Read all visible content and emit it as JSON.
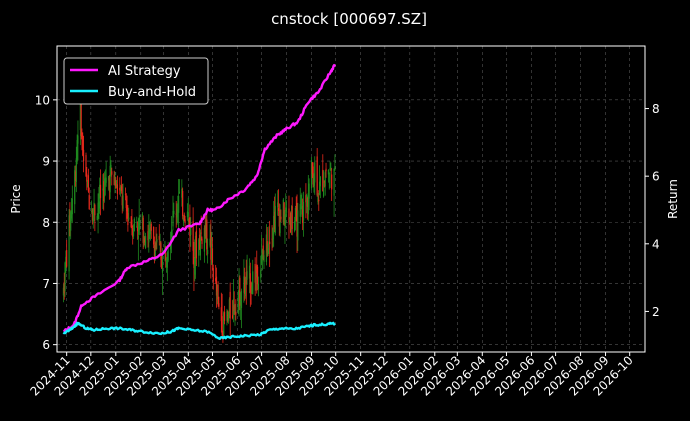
{
  "chart_data": {
    "type": "candlestick+line",
    "title": "cnstock [000697.SZ]",
    "ylabel_left": "Price",
    "ylabel_right": "Return",
    "ylim_left": [
      5.88,
      10.88
    ],
    "ylim_right": [
      0.8,
      9.85
    ],
    "yticks_left": [
      6,
      7,
      8,
      9,
      10
    ],
    "yticks_right": [
      2,
      4,
      6,
      8
    ],
    "xlim": [
      "2024-10-20",
      "2026-10-20"
    ],
    "x_tick_labels": [
      "2024-11",
      "2024-12",
      "2025-01",
      "2025-02",
      "2025-03",
      "2025-04",
      "2025-05",
      "2025-06",
      "2025-07",
      "2025-08",
      "2025-09",
      "2025-10",
      "2025-11",
      "2025-12",
      "2026-01",
      "2026-02",
      "2026-03",
      "2026-04",
      "2026-05",
      "2026-06",
      "2026-07",
      "2026-08",
      "2026-09",
      "2026-10"
    ],
    "grid": true,
    "legend_position": "top-left",
    "colors": {
      "up": "#1f8a1f",
      "down": "#e8291c",
      "ai_strategy": "#ff19ff",
      "buy_and_hold": "#19f0ff",
      "background": "#000000",
      "grid": "#555555"
    },
    "candles": {
      "date_range": [
        "2024-10-28",
        "2025-09-30"
      ],
      "close_keypoints": [
        [
          "2024-10-28",
          6.9
        ],
        [
          "2024-11-01",
          7.5
        ],
        [
          "2024-11-08",
          8.4
        ],
        [
          "2024-11-12",
          8.9
        ],
        [
          "2024-11-15",
          9.6
        ],
        [
          "2024-11-18",
          10.0
        ],
        [
          "2024-11-20",
          9.3
        ],
        [
          "2024-11-25",
          8.6
        ],
        [
          "2024-12-05",
          8.2
        ],
        [
          "2024-12-15",
          8.5
        ],
        [
          "2024-12-25",
          8.8
        ],
        [
          "2025-01-08",
          8.4
        ],
        [
          "2025-01-20",
          8.0
        ],
        [
          "2025-02-05",
          7.9
        ],
        [
          "2025-02-20",
          7.6
        ],
        [
          "2025-03-01",
          7.4
        ],
        [
          "2025-03-10",
          7.9
        ],
        [
          "2025-03-20",
          8.4
        ],
        [
          "2025-04-01",
          8.1
        ],
        [
          "2025-04-08",
          7.5
        ],
        [
          "2025-04-20",
          7.9
        ],
        [
          "2025-04-28",
          7.6
        ],
        [
          "2025-05-08",
          6.6
        ],
        [
          "2025-05-15",
          6.3
        ],
        [
          "2025-05-25",
          6.6
        ],
        [
          "2025-06-05",
          6.9
        ],
        [
          "2025-06-20",
          7.1
        ],
        [
          "2025-06-30",
          7.3
        ],
        [
          "2025-07-10",
          7.8
        ],
        [
          "2025-07-20",
          8.2
        ],
        [
          "2025-08-01",
          8.1
        ],
        [
          "2025-08-15",
          8.0
        ],
        [
          "2025-08-25",
          8.3
        ],
        [
          "2025-09-01",
          8.8
        ],
        [
          "2025-09-05",
          8.9
        ],
        [
          "2025-09-10",
          8.5
        ],
        [
          "2025-09-20",
          8.9
        ],
        [
          "2025-09-30",
          8.7
        ]
      ]
    },
    "series": [
      {
        "name": "AI Strategy",
        "points": [
          [
            "2024-10-28",
            1.4
          ],
          [
            "2024-11-10",
            1.6
          ],
          [
            "2024-11-20",
            2.2
          ],
          [
            "2024-12-10",
            2.5
          ],
          [
            "2025-01-05",
            2.9
          ],
          [
            "2025-01-15",
            3.3
          ],
          [
            "2025-02-10",
            3.5
          ],
          [
            "2025-03-01",
            3.7
          ],
          [
            "2025-03-20",
            4.4
          ],
          [
            "2025-04-15",
            4.6
          ],
          [
            "2025-04-25",
            5.0
          ],
          [
            "2025-05-05",
            5.0
          ],
          [
            "2025-05-20",
            5.3
          ],
          [
            "2025-06-10",
            5.6
          ],
          [
            "2025-06-25",
            6.0
          ],
          [
            "2025-07-05",
            6.8
          ],
          [
            "2025-07-20",
            7.2
          ],
          [
            "2025-08-01",
            7.4
          ],
          [
            "2025-08-15",
            7.6
          ],
          [
            "2025-08-28",
            8.2
          ],
          [
            "2025-09-10",
            8.5
          ],
          [
            "2025-09-25",
            9.1
          ],
          [
            "2025-09-30",
            9.3
          ]
        ]
      },
      {
        "name": "Buy-and-Hold",
        "points": [
          [
            "2024-10-28",
            1.35
          ],
          [
            "2024-11-05",
            1.45
          ],
          [
            "2024-11-15",
            1.65
          ],
          [
            "2024-11-25",
            1.5
          ],
          [
            "2024-12-05",
            1.45
          ],
          [
            "2024-12-20",
            1.5
          ],
          [
            "2025-01-05",
            1.5
          ],
          [
            "2025-01-20",
            1.45
          ],
          [
            "2025-02-05",
            1.4
          ],
          [
            "2025-02-25",
            1.35
          ],
          [
            "2025-03-10",
            1.4
          ],
          [
            "2025-03-20",
            1.5
          ],
          [
            "2025-04-05",
            1.45
          ],
          [
            "2025-04-25",
            1.4
          ],
          [
            "2025-05-10",
            1.2
          ],
          [
            "2025-05-25",
            1.25
          ],
          [
            "2025-06-10",
            1.28
          ],
          [
            "2025-06-30",
            1.32
          ],
          [
            "2025-07-10",
            1.45
          ],
          [
            "2025-07-25",
            1.5
          ],
          [
            "2025-08-10",
            1.48
          ],
          [
            "2025-08-25",
            1.55
          ],
          [
            "2025-09-05",
            1.6
          ],
          [
            "2025-09-20",
            1.62
          ],
          [
            "2025-09-30",
            1.65
          ]
        ]
      }
    ]
  }
}
